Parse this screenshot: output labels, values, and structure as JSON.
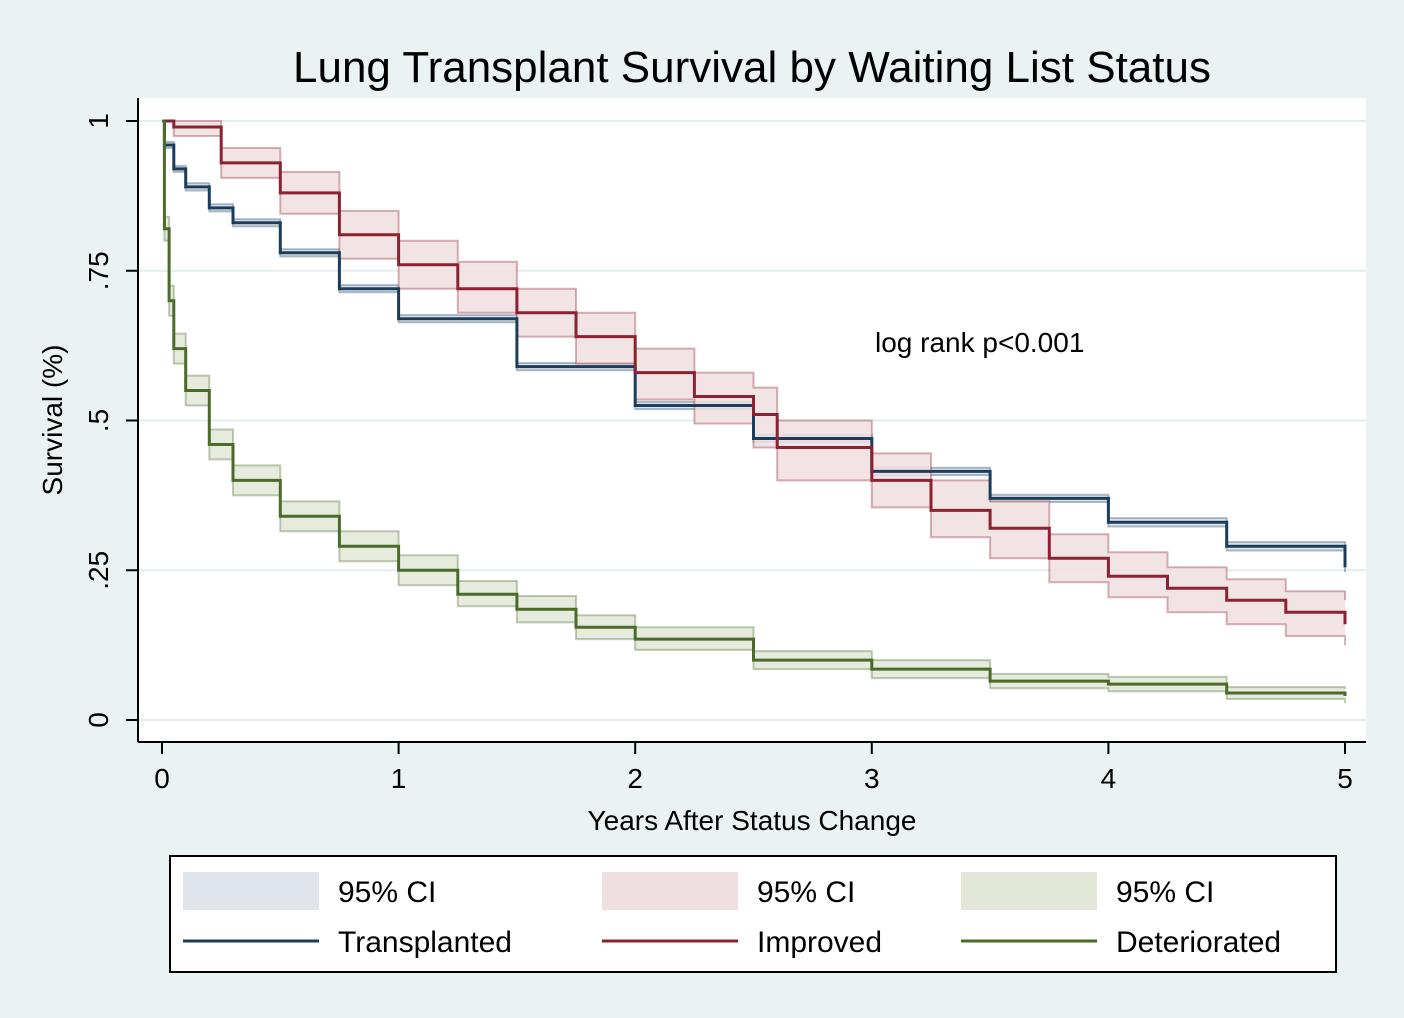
{
  "chart_data": {
    "type": "line",
    "title": "Lung Transplant Survival by Waiting List Status",
    "xlabel": "Years After Status Change",
    "ylabel": "Survival (%)",
    "xlim": [
      0,
      5
    ],
    "ylim": [
      0,
      1
    ],
    "x_ticks": [
      "0",
      "1",
      "2",
      "3",
      "4",
      "5"
    ],
    "y_ticks": [
      "0",
      ".25",
      ".5",
      ".75",
      "1"
    ],
    "grid": true,
    "legend_position": "bottom",
    "annotation": "log rank p<0.001",
    "ci_label": "95% CI",
    "series": [
      {
        "name": "Transplanted",
        "color": "#1b3d5c",
        "ci_color": "#dfe4ea",
        "x": [
          0,
          0.01,
          0.05,
          0.1,
          0.2,
          0.3,
          0.5,
          0.75,
          1.0,
          1.5,
          2.0,
          2.5,
          3.0,
          3.5,
          4.0,
          4.5,
          5.0
        ],
        "y": [
          1.0,
          0.96,
          0.92,
          0.89,
          0.855,
          0.83,
          0.78,
          0.72,
          0.67,
          0.59,
          0.525,
          0.47,
          0.415,
          0.37,
          0.33,
          0.29,
          0.255
        ],
        "lower": [
          1.0,
          0.955,
          0.915,
          0.884,
          0.849,
          0.824,
          0.774,
          0.714,
          0.664,
          0.584,
          0.519,
          0.464,
          0.409,
          0.364,
          0.323,
          0.283,
          0.247
        ],
        "upper": [
          1.0,
          0.965,
          0.925,
          0.896,
          0.861,
          0.836,
          0.786,
          0.726,
          0.676,
          0.596,
          0.531,
          0.476,
          0.421,
          0.376,
          0.337,
          0.297,
          0.263
        ]
      },
      {
        "name": "Improved",
        "color": "#8b2231",
        "ci_color": "#f0dfe1",
        "x": [
          0,
          0.05,
          0.25,
          0.5,
          0.75,
          1.0,
          1.25,
          1.5,
          1.75,
          2.0,
          2.25,
          2.5,
          2.6,
          3.0,
          3.25,
          3.5,
          3.75,
          4.0,
          4.25,
          4.5,
          4.75,
          5.0
        ],
        "y": [
          1.0,
          0.99,
          0.93,
          0.88,
          0.81,
          0.76,
          0.72,
          0.68,
          0.64,
          0.58,
          0.54,
          0.51,
          0.455,
          0.4,
          0.35,
          0.32,
          0.27,
          0.24,
          0.22,
          0.2,
          0.18,
          0.16
        ],
        "lower": [
          1.0,
          0.975,
          0.905,
          0.845,
          0.77,
          0.72,
          0.68,
          0.64,
          0.595,
          0.535,
          0.495,
          0.455,
          0.4,
          0.355,
          0.305,
          0.27,
          0.23,
          0.205,
          0.18,
          0.16,
          0.14,
          0.125
        ],
        "upper": [
          1.0,
          1.0,
          0.955,
          0.915,
          0.85,
          0.8,
          0.765,
          0.72,
          0.68,
          0.62,
          0.58,
          0.555,
          0.5,
          0.445,
          0.4,
          0.365,
          0.31,
          0.28,
          0.255,
          0.235,
          0.215,
          0.2
        ]
      },
      {
        "name": "Deteriorated",
        "color": "#4b6b2a",
        "ci_color": "#e2e7d8",
        "x": [
          0,
          0.01,
          0.03,
          0.05,
          0.1,
          0.2,
          0.3,
          0.5,
          0.75,
          1.0,
          1.25,
          1.5,
          1.75,
          2.0,
          2.5,
          3.0,
          3.5,
          4.0,
          4.5,
          5.0
        ],
        "y": [
          1.0,
          0.82,
          0.7,
          0.62,
          0.55,
          0.46,
          0.4,
          0.34,
          0.29,
          0.25,
          0.21,
          0.185,
          0.155,
          0.135,
          0.1,
          0.085,
          0.065,
          0.06,
          0.045,
          0.04
        ],
        "lower": [
          1.0,
          0.8,
          0.675,
          0.595,
          0.525,
          0.435,
          0.375,
          0.315,
          0.265,
          0.225,
          0.19,
          0.163,
          0.135,
          0.117,
          0.085,
          0.07,
          0.053,
          0.048,
          0.035,
          0.028
        ],
        "upper": [
          1.0,
          0.84,
          0.725,
          0.645,
          0.575,
          0.485,
          0.425,
          0.365,
          0.315,
          0.275,
          0.232,
          0.207,
          0.175,
          0.155,
          0.115,
          0.1,
          0.077,
          0.072,
          0.055,
          0.052
        ]
      }
    ]
  }
}
